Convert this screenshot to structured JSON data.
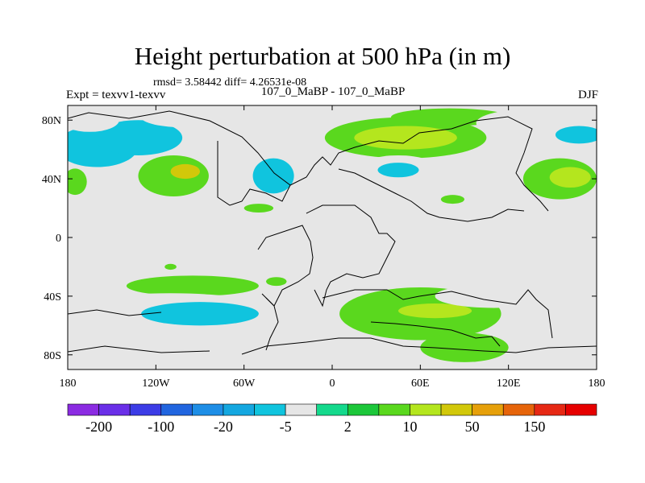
{
  "chart_data": {
    "type": "heatmap",
    "title": "Height perturbation at 500 hPa (in m)",
    "stats_text": "rmsd= 3.58442 diff= 4.26531e-08",
    "left_label": "Expt = texvv1-texvv",
    "center_label": "107_0_MaBP - 107_0_MaBP",
    "right_label": "DJF",
    "xlim": [
      -180,
      180
    ],
    "ylim": [
      -90,
      90
    ],
    "x_ticks": [
      {
        "value": -180,
        "label": "180"
      },
      {
        "value": -120,
        "label": "120W"
      },
      {
        "value": -60,
        "label": "60W"
      },
      {
        "value": 0,
        "label": "0"
      },
      {
        "value": 60,
        "label": "60E"
      },
      {
        "value": 120,
        "label": "120E"
      },
      {
        "value": 180,
        "label": "180"
      }
    ],
    "y_ticks": [
      {
        "value": 80,
        "label": "80N"
      },
      {
        "value": 40,
        "label": "40N"
      },
      {
        "value": 0,
        "label": "0"
      },
      {
        "value": -40,
        "label": "40S"
      },
      {
        "value": -80,
        "label": "80S"
      }
    ],
    "levels": [
      -200,
      -150,
      -100,
      -50,
      -20,
      -10,
      -5,
      -2,
      2,
      5,
      10,
      20,
      50,
      100,
      150,
      200
    ],
    "level_labels": [
      {
        "boundary": 1,
        "label": "-200"
      },
      {
        "boundary": 3,
        "label": "-100"
      },
      {
        "boundary": 5,
        "label": "-20"
      },
      {
        "boundary": 7,
        "label": "-5"
      },
      {
        "boundary": 9,
        "label": "2"
      },
      {
        "boundary": 11,
        "label": "10"
      },
      {
        "boundary": 13,
        "label": "50"
      },
      {
        "boundary": 15,
        "label": "150"
      }
    ],
    "colors": [
      "#8B2BE2",
      "#6A2FE8",
      "#3C3CE6",
      "#2165DF",
      "#1E8EE6",
      "#14A7E0",
      "#10C4DE",
      "#E6E6E6",
      "#14D98C",
      "#1CC73A",
      "#5AD81E",
      "#B4E61E",
      "#D2C80A",
      "#E6A00A",
      "#E6640A",
      "#E62814",
      "#E60000"
    ],
    "regions": [
      {
        "lon": -160,
        "lat": 62,
        "rlon": 28,
        "rlat": 14,
        "value": -8
      },
      {
        "lon": -132,
        "lat": 68,
        "rlon": 30,
        "rlat": 12,
        "value": -8
      },
      {
        "lon": -165,
        "lat": 80,
        "rlon": 20,
        "rlat": 8,
        "value": -4
      },
      {
        "lon": -100,
        "lat": 82,
        "rlon": 30,
        "rlat": 7,
        "value": -4
      },
      {
        "lon": -60,
        "lat": 58,
        "rlon": 22,
        "rlat": 26,
        "value": -4
      },
      {
        "lon": -40,
        "lat": 42,
        "rlon": 14,
        "rlat": 12,
        "value": -8
      },
      {
        "lon": -108,
        "lat": 42,
        "rlon": 24,
        "rlat": 14,
        "value": 6
      },
      {
        "lon": -100,
        "lat": 45,
        "rlon": 10,
        "rlat": 5,
        "value": 25
      },
      {
        "lon": -175,
        "lat": 38,
        "rlon": 8,
        "rlat": 9,
        "value": 6
      },
      {
        "lon": 50,
        "lat": 68,
        "rlon": 55,
        "rlat": 14,
        "value": 6
      },
      {
        "lon": 50,
        "lat": 68,
        "rlon": 35,
        "rlat": 8,
        "value": 15
      },
      {
        "lon": 80,
        "lat": 82,
        "rlon": 40,
        "rlat": 6,
        "value": 6
      },
      {
        "lon": 140,
        "lat": 78,
        "rlon": 42,
        "rlat": 10,
        "value": -4
      },
      {
        "lon": 168,
        "lat": 70,
        "rlon": 16,
        "rlat": 6,
        "value": -8
      },
      {
        "lon": 45,
        "lat": 46,
        "rlon": 28,
        "rlat": 10,
        "value": -4
      },
      {
        "lon": 45,
        "lat": 46,
        "rlon": 14,
        "rlat": 5,
        "value": -8
      },
      {
        "lon": 155,
        "lat": 40,
        "rlon": 25,
        "rlat": 14,
        "value": 6
      },
      {
        "lon": 162,
        "lat": 41,
        "rlon": 14,
        "rlat": 7,
        "value": 15
      },
      {
        "lon": 82,
        "lat": 26,
        "rlon": 8,
        "rlat": 3,
        "value": 6
      },
      {
        "lon": -50,
        "lat": 20,
        "rlon": 10,
        "rlat": 3,
        "value": 6
      },
      {
        "lon": -110,
        "lat": -20,
        "rlon": 4,
        "rlat": 2,
        "value": 6
      },
      {
        "lon": 25,
        "lat": -20,
        "rlon": 10,
        "rlat": 6,
        "value": -4
      },
      {
        "lon": -38,
        "lat": -30,
        "rlon": 7,
        "rlat": 3,
        "value": 6
      },
      {
        "lon": -95,
        "lat": -33,
        "rlon": 45,
        "rlat": 7,
        "value": 6
      },
      {
        "lon": -110,
        "lat": -50,
        "rlon": 70,
        "rlat": 12,
        "value": -4
      },
      {
        "lon": -90,
        "lat": -52,
        "rlon": 40,
        "rlat": 8,
        "value": -8
      },
      {
        "lon": -175,
        "lat": -50,
        "rlon": 8,
        "rlat": 6,
        "value": -4
      },
      {
        "lon": -175,
        "lat": -78,
        "rlon": 15,
        "rlat": 7,
        "value": -4
      },
      {
        "lon": 0,
        "lat": -38,
        "rlon": 10,
        "rlat": 6,
        "value": -4
      },
      {
        "lon": 60,
        "lat": -52,
        "rlon": 55,
        "rlat": 18,
        "value": 6
      },
      {
        "lon": 70,
        "lat": -50,
        "rlon": 25,
        "rlat": 5,
        "value": 15
      },
      {
        "lon": 110,
        "lat": -40,
        "rlon": 40,
        "rlat": 8,
        "value": -4
      },
      {
        "lon": 150,
        "lat": -55,
        "rlon": 20,
        "rlat": 8,
        "value": -4
      },
      {
        "lon": 90,
        "lat": -75,
        "rlon": 30,
        "rlat": 10,
        "value": 6
      },
      {
        "lon": 165,
        "lat": -78,
        "rlon": 15,
        "rlat": 8,
        "value": -4
      }
    ]
  }
}
